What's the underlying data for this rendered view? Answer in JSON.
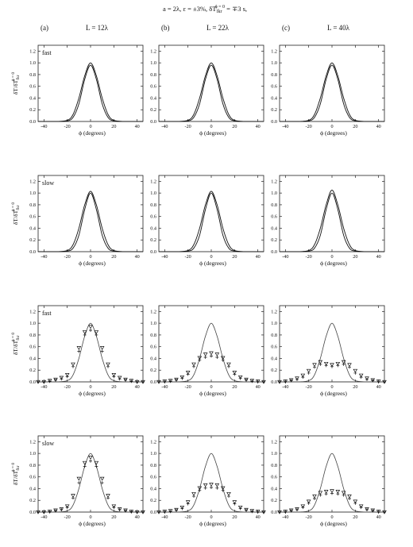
{
  "figure_title": {
    "pre": "a = 2λ, ε = ±3%, δT",
    "sub": "fkr",
    "sup": "ϕ = 0",
    "post": " = ∓3 s,"
  },
  "columns": [
    {
      "letter": "(a)",
      "label": "L = 12λ"
    },
    {
      "letter": "(b)",
      "label": "L = 22λ"
    },
    {
      "letter": "(c)",
      "label": "L = 40λ"
    }
  ],
  "row_labels": [
    "fast",
    "slow",
    "fast",
    "slow"
  ],
  "ylabel": {
    "main": "δT/δT",
    "sub": "fkr",
    "sup": "ϕ = 0"
  },
  "xlabel": "ϕ (degrees)",
  "x_ticks": [
    -40,
    -20,
    0,
    20,
    40
  ],
  "y_ticks": [
    "0.0",
    "0.2",
    "0.4",
    "0.6",
    "0.8",
    "1.0",
    "1.2"
  ],
  "colors": {
    "ink": "#111111",
    "ref": "#444444",
    "background": "#ffffff"
  },
  "chart_data": [
    {
      "type": "line",
      "row": 1,
      "column": "(a)",
      "row_label": "fast",
      "xlim": [
        -45,
        45
      ],
      "ylim": [
        0,
        1.3
      ],
      "series": [
        {
          "x": [
            -30,
            -20,
            -15,
            -10,
            -5,
            0,
            5,
            10,
            15,
            20,
            30
          ],
          "y": [
            0,
            0.02,
            0.12,
            0.4,
            0.78,
            1.0,
            0.78,
            0.4,
            0.12,
            0.02,
            0
          ]
        },
        {
          "x": [
            -30,
            -20,
            -15,
            -10,
            -5,
            0,
            5,
            10,
            15,
            20,
            30
          ],
          "y": [
            0,
            0.01,
            0.07,
            0.3,
            0.72,
            0.96,
            0.72,
            0.3,
            0.07,
            0.01,
            0
          ]
        }
      ]
    },
    {
      "type": "line",
      "row": 1,
      "column": "(b)",
      "xlim": [
        -45,
        45
      ],
      "ylim": [
        0,
        1.3
      ],
      "series": [
        {
          "x": [
            -30,
            -20,
            -15,
            -10,
            -5,
            0,
            5,
            10,
            15,
            20,
            30
          ],
          "y": [
            0,
            0.02,
            0.12,
            0.4,
            0.78,
            1.0,
            0.78,
            0.4,
            0.12,
            0.02,
            0
          ]
        },
        {
          "x": [
            -30,
            -20,
            -15,
            -10,
            -5,
            0,
            5,
            10,
            15,
            20,
            30
          ],
          "y": [
            0,
            0.01,
            0.07,
            0.3,
            0.72,
            0.96,
            0.72,
            0.3,
            0.07,
            0.01,
            0
          ]
        }
      ]
    },
    {
      "type": "line",
      "row": 1,
      "column": "(c)",
      "xlim": [
        -45,
        45
      ],
      "ylim": [
        0,
        1.3
      ],
      "series": [
        {
          "x": [
            -30,
            -20,
            -15,
            -10,
            -5,
            0,
            5,
            10,
            15,
            20,
            30
          ],
          "y": [
            0,
            0.02,
            0.12,
            0.4,
            0.78,
            1.0,
            0.78,
            0.4,
            0.12,
            0.02,
            0
          ]
        },
        {
          "x": [
            -30,
            -20,
            -15,
            -10,
            -5,
            0,
            5,
            10,
            15,
            20,
            30
          ],
          "y": [
            0,
            0.01,
            0.07,
            0.3,
            0.72,
            0.96,
            0.72,
            0.3,
            0.07,
            0.01,
            0
          ]
        }
      ]
    },
    {
      "type": "line",
      "row": 2,
      "column": "(a)",
      "row_label": "slow",
      "xlim": [
        -45,
        45
      ],
      "ylim": [
        0,
        1.3
      ],
      "series": [
        {
          "x": [
            -30,
            -20,
            -15,
            -10,
            -5,
            0,
            5,
            10,
            15,
            20,
            30
          ],
          "y": [
            0,
            0.02,
            0.12,
            0.4,
            0.8,
            1.03,
            0.8,
            0.4,
            0.12,
            0.02,
            0
          ]
        },
        {
          "x": [
            -30,
            -20,
            -15,
            -10,
            -5,
            0,
            5,
            10,
            15,
            20,
            30
          ],
          "y": [
            0,
            0.01,
            0.06,
            0.28,
            0.72,
            1.0,
            0.72,
            0.28,
            0.06,
            0.01,
            0
          ]
        }
      ]
    },
    {
      "type": "line",
      "row": 2,
      "column": "(b)",
      "xlim": [
        -45,
        45
      ],
      "ylim": [
        0,
        1.3
      ],
      "series": [
        {
          "x": [
            -30,
            -20,
            -15,
            -10,
            -5,
            0,
            5,
            10,
            15,
            20,
            30
          ],
          "y": [
            0,
            0.02,
            0.12,
            0.4,
            0.8,
            1.03,
            0.8,
            0.4,
            0.12,
            0.02,
            0
          ]
        },
        {
          "x": [
            -30,
            -20,
            -15,
            -10,
            -5,
            0,
            5,
            10,
            15,
            20,
            30
          ],
          "y": [
            0,
            0.01,
            0.06,
            0.28,
            0.72,
            1.0,
            0.72,
            0.28,
            0.06,
            0.01,
            0
          ]
        }
      ]
    },
    {
      "type": "line",
      "row": 2,
      "column": "(c)",
      "xlim": [
        -45,
        45
      ],
      "ylim": [
        0,
        1.3
      ],
      "series": [
        {
          "x": [
            -30,
            -20,
            -15,
            -10,
            -5,
            0,
            5,
            10,
            15,
            20,
            30
          ],
          "y": [
            0,
            0.02,
            0.12,
            0.4,
            0.8,
            1.05,
            0.8,
            0.4,
            0.12,
            0.02,
            0
          ]
        },
        {
          "x": [
            -30,
            -20,
            -15,
            -10,
            -5,
            0,
            5,
            10,
            15,
            20,
            30
          ],
          "y": [
            0,
            0.01,
            0.06,
            0.28,
            0.72,
            1.0,
            0.72,
            0.28,
            0.06,
            0.01,
            0
          ]
        }
      ]
    },
    {
      "type": "scatter",
      "row": 3,
      "column": "(a)",
      "row_label": "fast",
      "xlim": [
        -45,
        45
      ],
      "ylim": [
        0,
        1.3
      ],
      "series": [
        {
          "x": [
            -45,
            -40,
            -35,
            -30,
            -25,
            -20,
            -15,
            -10,
            -5,
            0,
            5,
            10,
            15,
            20,
            25,
            30,
            35,
            40,
            45
          ],
          "y": [
            0,
            0,
            0.02,
            0.04,
            0.07,
            0.12,
            0.3,
            0.58,
            0.85,
            0.94,
            0.85,
            0.58,
            0.3,
            0.12,
            0.07,
            0.04,
            0.02,
            0,
            0
          ]
        },
        {
          "x": [
            -45,
            -40,
            -35,
            -30,
            -25,
            -20,
            -15,
            -10,
            -5,
            0,
            5,
            10,
            15,
            20,
            25,
            30,
            35,
            40,
            45
          ],
          "y": [
            0,
            0,
            0.01,
            0.03,
            0.05,
            0.09,
            0.26,
            0.52,
            0.8,
            0.88,
            0.8,
            0.52,
            0.26,
            0.09,
            0.05,
            0.03,
            0.01,
            0,
            0
          ]
        }
      ],
      "reference": {
        "x": [
          -30,
          -20,
          -15,
          -10,
          -5,
          0,
          5,
          10,
          15,
          20,
          30
        ],
        "y": [
          0,
          0.02,
          0.12,
          0.4,
          0.78,
          1.0,
          0.78,
          0.4,
          0.12,
          0.02,
          0
        ]
      }
    },
    {
      "type": "scatter",
      "row": 3,
      "column": "(b)",
      "xlim": [
        -45,
        45
      ],
      "ylim": [
        0,
        1.3
      ],
      "series": [
        {
          "x": [
            -45,
            -40,
            -35,
            -30,
            -25,
            -20,
            -15,
            -10,
            -5,
            0,
            5,
            10,
            15,
            20,
            25,
            30,
            35,
            40,
            45
          ],
          "y": [
            0,
            0.01,
            0.02,
            0.04,
            0.08,
            0.16,
            0.3,
            0.41,
            0.47,
            0.49,
            0.47,
            0.41,
            0.3,
            0.16,
            0.08,
            0.04,
            0.02,
            0.01,
            0
          ]
        },
        {
          "x": [
            -45,
            -40,
            -35,
            -30,
            -25,
            -20,
            -15,
            -10,
            -5,
            0,
            5,
            10,
            15,
            20,
            25,
            30,
            35,
            40,
            45
          ],
          "y": [
            0,
            0,
            0.01,
            0.03,
            0.06,
            0.13,
            0.26,
            0.37,
            0.42,
            0.44,
            0.42,
            0.37,
            0.26,
            0.13,
            0.06,
            0.03,
            0.01,
            0,
            0
          ]
        }
      ],
      "reference": {
        "x": [
          -30,
          -20,
          -15,
          -10,
          -5,
          0,
          5,
          10,
          15,
          20,
          30
        ],
        "y": [
          0,
          0.02,
          0.12,
          0.4,
          0.78,
          1.0,
          0.78,
          0.4,
          0.12,
          0.02,
          0
        ]
      }
    },
    {
      "type": "scatter",
      "row": 3,
      "column": "(c)",
      "xlim": [
        -45,
        45
      ],
      "ylim": [
        0,
        1.3
      ],
      "series": [
        {
          "x": [
            -45,
            -40,
            -35,
            -30,
            -25,
            -20,
            -15,
            -10,
            -5,
            0,
            5,
            10,
            15,
            20,
            25,
            30,
            35,
            40,
            45
          ],
          "y": [
            0,
            0.01,
            0.03,
            0.06,
            0.11,
            0.19,
            0.29,
            0.34,
            0.31,
            0.29,
            0.31,
            0.34,
            0.29,
            0.19,
            0.11,
            0.06,
            0.03,
            0.01,
            0
          ]
        },
        {
          "x": [
            -45,
            -40,
            -35,
            -30,
            -25,
            -20,
            -15,
            -10,
            -5,
            0,
            5,
            10,
            15,
            20,
            25,
            30,
            35,
            40,
            45
          ],
          "y": [
            0,
            0,
            0.02,
            0.04,
            0.08,
            0.15,
            0.25,
            0.3,
            0.28,
            0.26,
            0.28,
            0.3,
            0.25,
            0.15,
            0.08,
            0.04,
            0.02,
            0,
            0
          ]
        }
      ],
      "reference": {
        "x": [
          -30,
          -20,
          -15,
          -10,
          -5,
          0,
          5,
          10,
          15,
          20,
          30
        ],
        "y": [
          0,
          0.02,
          0.12,
          0.4,
          0.78,
          1.0,
          0.78,
          0.4,
          0.12,
          0.02,
          0
        ]
      }
    },
    {
      "type": "scatter",
      "row": 4,
      "column": "(a)",
      "row_label": "slow",
      "xlim": [
        -45,
        45
      ],
      "ylim": [
        0,
        1.3
      ],
      "series": [
        {
          "x": [
            -45,
            -40,
            -35,
            -30,
            -25,
            -20,
            -15,
            -10,
            -5,
            0,
            5,
            10,
            15,
            20,
            25,
            30,
            35,
            40,
            45
          ],
          "y": [
            0,
            0,
            0.01,
            0.03,
            0.05,
            0.1,
            0.28,
            0.57,
            0.84,
            0.93,
            0.84,
            0.57,
            0.28,
            0.1,
            0.05,
            0.03,
            0.01,
            0,
            0
          ]
        },
        {
          "x": [
            -45,
            -40,
            -35,
            -30,
            -25,
            -20,
            -15,
            -10,
            -5,
            0,
            5,
            10,
            15,
            20,
            25,
            30,
            35,
            40,
            45
          ],
          "y": [
            0,
            0,
            0.01,
            0.02,
            0.04,
            0.08,
            0.24,
            0.5,
            0.78,
            0.87,
            0.78,
            0.5,
            0.24,
            0.08,
            0.04,
            0.02,
            0.01,
            0,
            0
          ]
        }
      ],
      "reference": {
        "x": [
          -30,
          -20,
          -15,
          -10,
          -5,
          0,
          5,
          10,
          15,
          20,
          30
        ],
        "y": [
          0,
          0.02,
          0.12,
          0.4,
          0.78,
          1.0,
          0.78,
          0.4,
          0.12,
          0.02,
          0
        ]
      }
    },
    {
      "type": "scatter",
      "row": 4,
      "column": "(b)",
      "xlim": [
        -45,
        45
      ],
      "ylim": [
        0,
        1.3
      ],
      "series": [
        {
          "x": [
            -45,
            -40,
            -35,
            -30,
            -25,
            -20,
            -15,
            -10,
            -5,
            0,
            5,
            10,
            15,
            20,
            25,
            30,
            35,
            40,
            45
          ],
          "y": [
            0,
            0.01,
            0.02,
            0.04,
            0.08,
            0.17,
            0.31,
            0.41,
            0.46,
            0.47,
            0.46,
            0.41,
            0.31,
            0.17,
            0.08,
            0.04,
            0.02,
            0.01,
            0
          ]
        },
        {
          "x": [
            -45,
            -40,
            -35,
            -30,
            -25,
            -20,
            -15,
            -10,
            -5,
            0,
            5,
            10,
            15,
            20,
            25,
            30,
            35,
            40,
            45
          ],
          "y": [
            0,
            0,
            0.01,
            0.03,
            0.06,
            0.14,
            0.27,
            0.37,
            0.41,
            0.42,
            0.41,
            0.37,
            0.27,
            0.14,
            0.06,
            0.03,
            0.01,
            0,
            0
          ]
        }
      ],
      "reference": {
        "x": [
          -30,
          -20,
          -15,
          -10,
          -5,
          0,
          5,
          10,
          15,
          20,
          30
        ],
        "y": [
          0,
          0.02,
          0.12,
          0.4,
          0.78,
          1.0,
          0.78,
          0.4,
          0.12,
          0.02,
          0
        ]
      }
    },
    {
      "type": "scatter",
      "row": 4,
      "column": "(c)",
      "xlim": [
        -45,
        45
      ],
      "ylim": [
        0,
        1.3
      ],
      "series": [
        {
          "x": [
            -45,
            -40,
            -35,
            -30,
            -25,
            -20,
            -15,
            -10,
            -5,
            0,
            5,
            10,
            15,
            20,
            25,
            30,
            35,
            40,
            45
          ],
          "y": [
            0,
            0.01,
            0.03,
            0.05,
            0.1,
            0.18,
            0.27,
            0.33,
            0.35,
            0.36,
            0.35,
            0.33,
            0.27,
            0.18,
            0.1,
            0.05,
            0.03,
            0.01,
            0
          ]
        },
        {
          "x": [
            -45,
            -40,
            -35,
            -30,
            -25,
            -20,
            -15,
            -10,
            -5,
            0,
            5,
            10,
            15,
            20,
            25,
            30,
            35,
            40,
            45
          ],
          "y": [
            0,
            0,
            0.02,
            0.04,
            0.08,
            0.15,
            0.23,
            0.29,
            0.31,
            0.32,
            0.31,
            0.29,
            0.23,
            0.15,
            0.08,
            0.04,
            0.02,
            0,
            0
          ]
        }
      ],
      "reference": {
        "x": [
          -30,
          -20,
          -15,
          -10,
          -5,
          0,
          5,
          10,
          15,
          20,
          30
        ],
        "y": [
          0,
          0.02,
          0.12,
          0.4,
          0.78,
          1.0,
          0.78,
          0.4,
          0.12,
          0.02,
          0
        ]
      }
    }
  ]
}
